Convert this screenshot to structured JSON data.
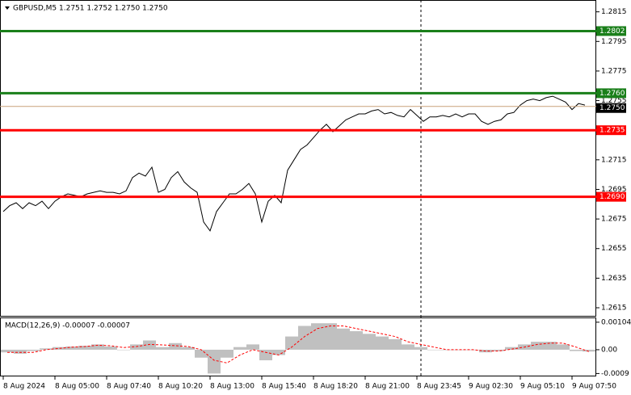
{
  "chart_data": [
    {
      "type": "line",
      "title": "GBPUSD,M5  1.2751 1.2752 1.2750 1.2750",
      "color": "#000000",
      "values": [
        1.268,
        1.2684,
        1.2686,
        1.2682,
        1.2686,
        1.2684,
        1.2687,
        1.2682,
        1.2687,
        1.269,
        1.2692,
        1.2691,
        1.269,
        1.2692,
        1.2693,
        1.2694,
        1.2693,
        1.2693,
        1.2692,
        1.2694,
        1.2703,
        1.2706,
        1.2704,
        1.271,
        1.2693,
        1.2695,
        1.2703,
        1.2707,
        1.27,
        1.2696,
        1.2693,
        1.2673,
        1.2667,
        1.268,
        1.2686,
        1.2692,
        1.2692,
        1.2695,
        1.2699,
        1.2692,
        1.2673,
        1.2687,
        1.2691,
        1.2686,
        1.2708,
        1.2715,
        1.2722,
        1.2725,
        1.273,
        1.2735,
        1.2739,
        1.2734,
        1.2738,
        1.2742,
        1.2744,
        1.2746,
        1.2746,
        1.2748,
        1.2749,
        1.2746,
        1.2747,
        1.2745,
        1.2744,
        1.2749,
        1.2745,
        1.2741,
        1.2744,
        1.2744,
        1.2745,
        1.2744,
        1.2746,
        1.2744,
        1.2746,
        1.2746,
        1.2741,
        1.2739,
        1.2741,
        1.2742,
        1.2746,
        1.2747,
        1.2752,
        1.2755,
        1.2756,
        1.2755,
        1.2757,
        1.2758,
        1.2756,
        1.2754,
        1.2749,
        1.2753,
        1.2752
      ],
      "ylim": [
        1.2609,
        1.2823
      ],
      "yticks": [
        1.2815,
        1.2795,
        1.2775,
        1.2755,
        1.2735,
        1.2715,
        1.2695,
        1.2675,
        1.2655,
        1.2635,
        1.2615
      ],
      "levels": [
        {
          "value": 1.2802,
          "label": "1.2802",
          "color": "#1a7f1a"
        },
        {
          "value": 1.276,
          "label": "1.2760",
          "color": "#1a7f1a"
        },
        {
          "value": 1.2735,
          "label": "1.2735",
          "color": "#ff0000"
        },
        {
          "value": 1.269,
          "label": "1.2690",
          "color": "#ff0000"
        }
      ],
      "bid": {
        "value": 1.275,
        "label": "1.2750",
        "color": "#000000"
      },
      "x_labels": [
        "8 Aug 2024",
        "8 Aug 05:00",
        "8 Aug 07:40",
        "8 Aug 10:20",
        "8 Aug 13:00",
        "8 Aug 15:40",
        "8 Aug 18:20",
        "8 Aug 21:00",
        "8 Aug 23:45",
        "9 Aug 02:30",
        "9 Aug 05:10",
        "9 Aug 07:50"
      ]
    },
    {
      "type": "bar",
      "title": "MACD(12,26,9) -0.00007 -0.00007",
      "color": "#c0c0c0",
      "values": [
        -0.0001,
        -0.00015,
        -5e-05,
        5e-05,
        0.0001,
        0.00012,
        0.00015,
        0.0002,
        0.00012,
        0,
        0.0002,
        0.00035,
        0.0001,
        0.00025,
        0.0001,
        -0.0003,
        -0.0009,
        -0.0003,
        0.0001,
        0.0002,
        -0.0004,
        -0.0002,
        0.0005,
        0.0009,
        0.001,
        0.001,
        0.0008,
        0.0007,
        0.0006,
        0.0005,
        0.0004,
        0.0002,
        0.0001,
        0,
        0,
        0,
        0,
        -0.0001,
        -5e-05,
        0.0001,
        0.0002,
        0.0003,
        0.0003,
        0.0002,
        -5e-05,
        -7e-05
      ],
      "signal": {
        "color": "#ff0000",
        "values": [
          -0.0001,
          -0.0001,
          -0.0001,
          0,
          5e-05,
          0.0001,
          0.00012,
          0.00017,
          0.00015,
          8e-05,
          0.00012,
          0.0002,
          0.00018,
          0.00015,
          0.00012,
          0,
          -0.0004,
          -0.0005,
          -0.0002,
          0,
          -0.0001,
          -0.0002,
          0.0001,
          0.0005,
          0.0008,
          0.0009,
          0.0009,
          0.0008,
          0.0007,
          0.0006,
          0.0005,
          0.0003,
          0.0002,
          0.0001,
          0,
          0,
          0,
          -5e-05,
          -5e-05,
          2e-05,
          0.0001,
          0.0002,
          0.00025,
          0.00025,
          0.0001,
          -7e-05
        ]
      },
      "ylim": [
        -0.00101,
        0.00122
      ],
      "yticks": [
        0.00104,
        {
          "value": 0,
          "label": "0.00"
        },
        -0.0009
      ]
    }
  ]
}
